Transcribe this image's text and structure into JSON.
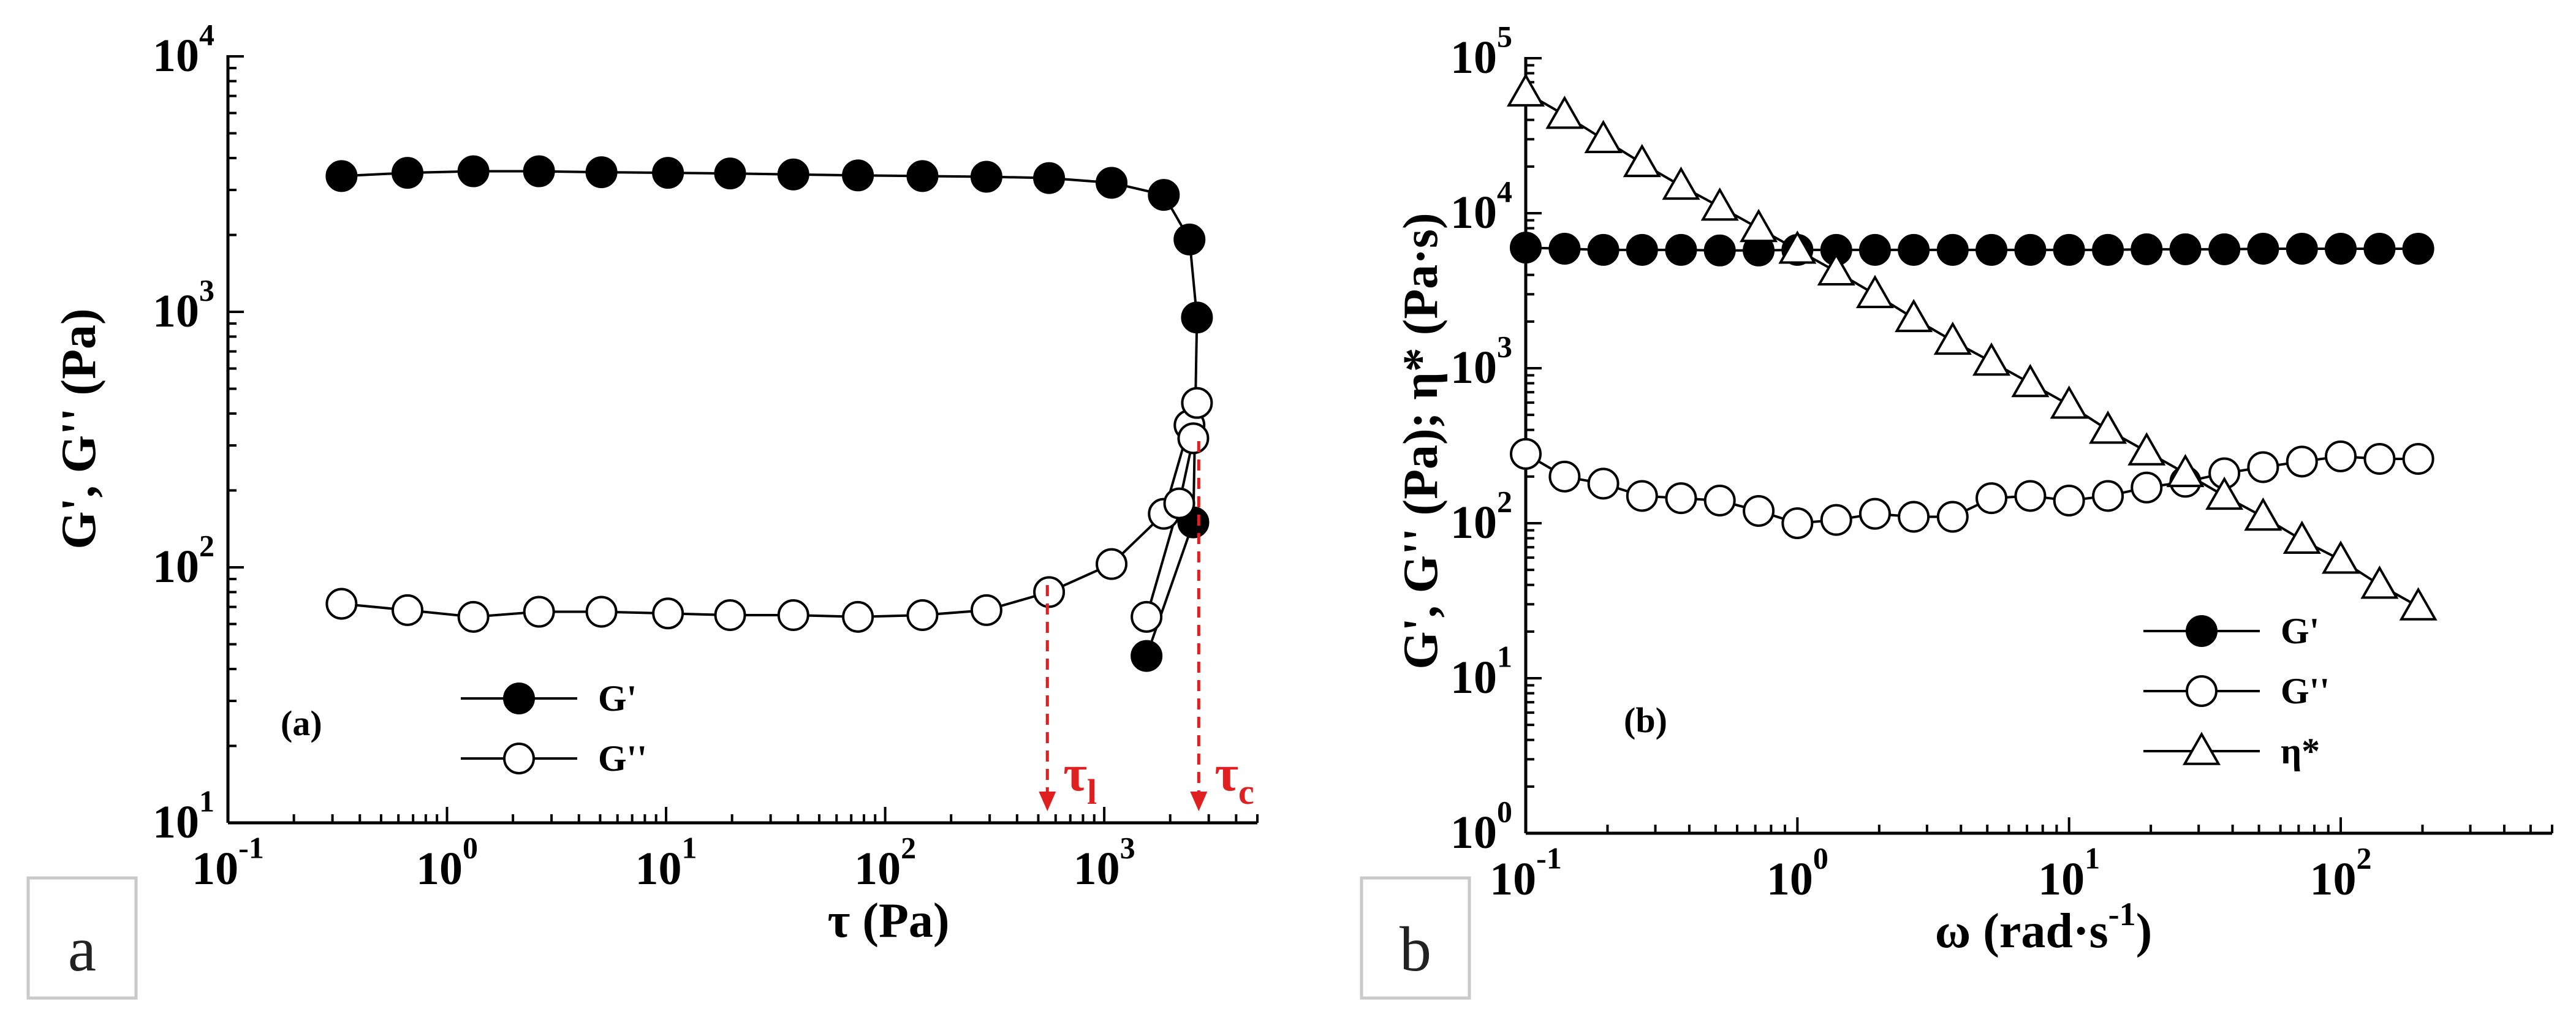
{
  "figure": {
    "panel_a": {
      "corner_label": "a",
      "panel_tag": "(a)",
      "ylabel": "G', G'' (Pa)",
      "xlabel": "τ (Pa)",
      "annotations": [
        {
          "text": "τ",
          "subscript": "l",
          "x": 550
        },
        {
          "text": "τ",
          "subscript": "c",
          "x": 2700
        }
      ]
    },
    "panel_b": {
      "corner_label": "b",
      "panel_tag": "(b)",
      "ylabel": "G', G'' (Pa); η* (Pa·s)",
      "xlabel": "ω (rad·s-1)"
    }
  },
  "chart_data": [
    {
      "type": "scatter",
      "title": "(a)",
      "xlabel": "τ (Pa)",
      "ylabel": "G', G'' (Pa)",
      "xscale": "log",
      "yscale": "log",
      "xlim": [
        0.1,
        5000
      ],
      "ylim": [
        10,
        10000
      ],
      "xticks": [
        0.1,
        1,
        10,
        100,
        1000
      ],
      "xtick_labels": [
        {
          "base": "10",
          "exp": "-1"
        },
        {
          "base": "10",
          "exp": "0"
        },
        {
          "base": "10",
          "exp": "1"
        },
        {
          "base": "10",
          "exp": "2"
        },
        {
          "base": "10",
          "exp": "3"
        }
      ],
      "yticks": [
        10,
        100,
        1000,
        10000
      ],
      "ytick_labels": [
        {
          "base": "10",
          "exp": "1"
        },
        {
          "base": "10",
          "exp": "2"
        },
        {
          "base": "10",
          "exp": "3"
        },
        {
          "base": "10",
          "exp": "4"
        }
      ],
      "legend_position": "lower-left",
      "series": [
        {
          "name": "G'",
          "marker": "filled-circle",
          "x": [
            0.33,
            0.66,
            1.32,
            2.63,
            5.07,
            10.2,
            19.6,
            38.1,
            75.1,
            148,
            290,
            560,
            1080,
            1870,
            2450,
            2650,
            2550,
            1560
          ],
          "y": [
            3400,
            3500,
            3550,
            3550,
            3520,
            3500,
            3480,
            3450,
            3420,
            3400,
            3380,
            3340,
            3200,
            2870,
            1920,
            950,
            150,
            45
          ]
        },
        {
          "name": "G''",
          "marker": "open-circle",
          "x": [
            0.33,
            0.66,
            1.32,
            2.63,
            5.07,
            10.2,
            19.6,
            38.1,
            75.1,
            148,
            290,
            560,
            1080,
            1870,
            2450,
            2650,
            2550,
            2200,
            1560
          ],
          "y": [
            72,
            68,
            64,
            67,
            67,
            66,
            65,
            65,
            64,
            65,
            68,
            80,
            103,
            162,
            360,
            440,
            320,
            178,
            64
          ]
        }
      ]
    },
    {
      "type": "scatter",
      "title": "(b)",
      "xlabel": "ω (rad·s-1)",
      "ylabel": "G', G'' (Pa); η* (Pa·s)",
      "xscale": "log",
      "yscale": "log",
      "xlim": [
        0.1,
        600
      ],
      "ylim": [
        1,
        100000
      ],
      "xticks": [
        0.1,
        1,
        10,
        100
      ],
      "xtick_labels": [
        {
          "base": "10",
          "exp": "-1"
        },
        {
          "base": "10",
          "exp": "0"
        },
        {
          "base": "10",
          "exp": "1"
        },
        {
          "base": "10",
          "exp": "2"
        }
      ],
      "yticks": [
        1,
        10,
        100,
        1000,
        10000,
        100000
      ],
      "ytick_labels": [
        {
          "base": "10",
          "exp": "0"
        },
        {
          "base": "10",
          "exp": "1"
        },
        {
          "base": "10",
          "exp": "2"
        },
        {
          "base": "10",
          "exp": "3"
        },
        {
          "base": "10",
          "exp": "4"
        },
        {
          "base": "10",
          "exp": "5"
        }
      ],
      "legend_position": "lower-right",
      "series": [
        {
          "name": "G'",
          "marker": "filled-circle",
          "x": [
            0.1,
            0.139,
            0.193,
            0.268,
            0.373,
            0.518,
            0.72,
            1.0,
            1.39,
            1.93,
            2.68,
            3.73,
            5.18,
            7.2,
            10,
            13.9,
            19.3,
            26.8,
            37.3,
            51.8,
            72,
            100,
            139,
            193
          ],
          "y": [
            6000,
            5900,
            5800,
            5800,
            5800,
            5750,
            5750,
            5800,
            5800,
            5800,
            5800,
            5800,
            5800,
            5800,
            5800,
            5800,
            5850,
            5850,
            5850,
            5900,
            5900,
            5900,
            5900,
            5900
          ]
        },
        {
          "name": "G''",
          "marker": "open-circle",
          "x": [
            0.1,
            0.139,
            0.193,
            0.268,
            0.373,
            0.518,
            0.72,
            1.0,
            1.39,
            1.93,
            2.68,
            3.73,
            5.18,
            7.2,
            10,
            13.9,
            19.3,
            26.8,
            37.3,
            51.8,
            72,
            100,
            139,
            193
          ],
          "y": [
            280,
            200,
            180,
            150,
            145,
            140,
            120,
            100,
            105,
            115,
            110,
            110,
            145,
            150,
            140,
            150,
            170,
            185,
            210,
            230,
            250,
            270,
            260,
            260
          ]
        },
        {
          "name": "η*",
          "marker": "open-triangle",
          "x": [
            0.1,
            0.139,
            0.193,
            0.268,
            0.373,
            0.518,
            0.72,
            1.0,
            1.39,
            1.93,
            2.68,
            3.73,
            5.18,
            7.2,
            10,
            13.9,
            19.3,
            26.8,
            37.3,
            51.8,
            72,
            100,
            139,
            193
          ],
          "y": [
            60000,
            43000,
            30000,
            21000,
            15000,
            11000,
            8000,
            5800,
            4200,
            3000,
            2100,
            1500,
            1100,
            800,
            580,
            400,
            290,
            210,
            150,
            110,
            78,
            58,
            40,
            29
          ]
        }
      ]
    }
  ]
}
